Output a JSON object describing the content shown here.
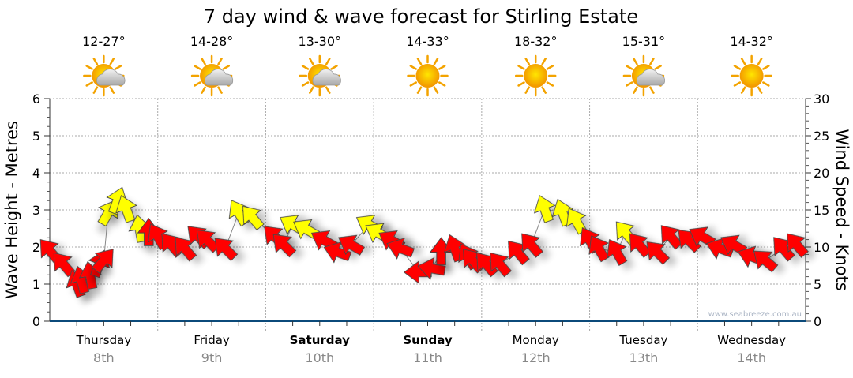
{
  "chart_data": {
    "type": "scatter",
    "title": "7 day wind & wave forecast for Stirling Estate",
    "ylabel_left": "Wave Height - Metres",
    "ylabel_right": "Wind Speed - Knots",
    "ylim_left": [
      0,
      6
    ],
    "ylim_right": [
      0,
      30
    ],
    "yticks_left": [
      "0",
      "1",
      "2",
      "3",
      "4",
      "5",
      "6"
    ],
    "yticks_right": [
      "0",
      "5",
      "10",
      "15",
      "20",
      "25",
      "30"
    ],
    "x_unit": "hours from Thursday 00:00",
    "xlim": [
      0,
      168
    ],
    "grid": true,
    "watermark": "www.seabreeze.com.au",
    "colors": {
      "calm": "#ff0000",
      "fresh": "#ffff00",
      "axis": "#0b4a7a",
      "date": "#888888"
    },
    "days": [
      {
        "name": "Thursday",
        "date": "8th",
        "temp": "12-27°",
        "icon": "partly-cloudy-icon",
        "bold": false
      },
      {
        "name": "Friday",
        "date": "9th",
        "temp": "14-28°",
        "icon": "partly-cloudy-icon",
        "bold": false
      },
      {
        "name": "Saturday",
        "date": "10th",
        "temp": "13-30°",
        "icon": "partly-cloudy-icon",
        "bold": true
      },
      {
        "name": "Sunday",
        "date": "11th",
        "temp": "14-33°",
        "icon": "sunny-icon",
        "bold": true
      },
      {
        "name": "Monday",
        "date": "12th",
        "temp": "18-32°",
        "icon": "sunny-icon",
        "bold": false
      },
      {
        "name": "Tuesday",
        "date": "13th",
        "temp": "15-31°",
        "icon": "partly-cloudy-icon",
        "bold": false
      },
      {
        "name": "Wednesday",
        "date": "14th",
        "temp": "14-32°",
        "icon": "sunny-icon",
        "bold": false
      }
    ],
    "wind": [
      {
        "h": 0,
        "kn": 9.5,
        "dir": 320,
        "c": "calm"
      },
      {
        "h": 3,
        "kn": 7.7,
        "dir": 320,
        "c": "calm"
      },
      {
        "h": 6,
        "kn": 5.0,
        "dir": 340,
        "c": "calm"
      },
      {
        "h": 7,
        "kn": 5.5,
        "dir": 345,
        "c": "calm"
      },
      {
        "h": 9,
        "kn": 6.1,
        "dir": 350,
        "c": "calm"
      },
      {
        "h": 11,
        "kn": 7.7,
        "dir": 20,
        "c": "calm"
      },
      {
        "h": 12,
        "kn": 8.2,
        "dir": 40,
        "c": "calm"
      },
      {
        "h": 13,
        "kn": 14.6,
        "dir": 30,
        "c": "fresh"
      },
      {
        "h": 15,
        "kn": 16.2,
        "dir": 20,
        "c": "fresh"
      },
      {
        "h": 17,
        "kn": 15.1,
        "dir": 340,
        "c": "fresh"
      },
      {
        "h": 20,
        "kn": 12.4,
        "dir": 350,
        "c": "fresh"
      },
      {
        "h": 22,
        "kn": 11.9,
        "dir": 0,
        "c": "calm"
      },
      {
        "h": 24,
        "kn": 11.4,
        "dir": 330,
        "c": "calm"
      },
      {
        "h": 27,
        "kn": 10.3,
        "dir": 320,
        "c": "calm"
      },
      {
        "h": 30,
        "kn": 9.8,
        "dir": 320,
        "c": "calm"
      },
      {
        "h": 33,
        "kn": 11.4,
        "dir": 315,
        "c": "calm"
      },
      {
        "h": 35,
        "kn": 10.9,
        "dir": 315,
        "c": "calm"
      },
      {
        "h": 39,
        "kn": 9.8,
        "dir": 315,
        "c": "calm"
      },
      {
        "h": 42,
        "kn": 14.6,
        "dir": 330,
        "c": "fresh"
      },
      {
        "h": 45,
        "kn": 14.0,
        "dir": 320,
        "c": "fresh"
      },
      {
        "h": 50,
        "kn": 11.4,
        "dir": 315,
        "c": "calm"
      },
      {
        "h": 52,
        "kn": 10.3,
        "dir": 315,
        "c": "calm"
      },
      {
        "h": 54,
        "kn": 13.0,
        "dir": 300,
        "c": "fresh"
      },
      {
        "h": 57,
        "kn": 12.4,
        "dir": 300,
        "c": "fresh"
      },
      {
        "h": 61,
        "kn": 10.9,
        "dir": 300,
        "c": "calm"
      },
      {
        "h": 64,
        "kn": 9.3,
        "dir": 290,
        "c": "calm"
      },
      {
        "h": 67,
        "kn": 10.3,
        "dir": 300,
        "c": "calm"
      },
      {
        "h": 71,
        "kn": 13.0,
        "dir": 300,
        "c": "fresh"
      },
      {
        "h": 73,
        "kn": 11.9,
        "dir": 300,
        "c": "fresh"
      },
      {
        "h": 76,
        "kn": 10.9,
        "dir": 300,
        "c": "calm"
      },
      {
        "h": 78,
        "kn": 9.8,
        "dir": 290,
        "c": "calm"
      },
      {
        "h": 82,
        "kn": 6.6,
        "dir": 270,
        "c": "calm"
      },
      {
        "h": 85,
        "kn": 7.1,
        "dir": 280,
        "c": "calm"
      },
      {
        "h": 87,
        "kn": 9.3,
        "dir": 0,
        "c": "calm"
      },
      {
        "h": 90,
        "kn": 9.8,
        "dir": 340,
        "c": "calm"
      },
      {
        "h": 93,
        "kn": 8.7,
        "dir": 330,
        "c": "calm"
      },
      {
        "h": 94,
        "kn": 8.2,
        "dir": 320,
        "c": "calm"
      },
      {
        "h": 97,
        "kn": 7.7,
        "dir": 320,
        "c": "calm"
      },
      {
        "h": 100,
        "kn": 7.7,
        "dir": 320,
        "c": "calm"
      },
      {
        "h": 104,
        "kn": 9.3,
        "dir": 320,
        "c": "calm"
      },
      {
        "h": 107,
        "kn": 10.3,
        "dir": 320,
        "c": "calm"
      },
      {
        "h": 110,
        "kn": 15.1,
        "dir": 340,
        "c": "fresh"
      },
      {
        "h": 114,
        "kn": 14.6,
        "dir": 340,
        "c": "fresh"
      },
      {
        "h": 117,
        "kn": 13.5,
        "dir": 330,
        "c": "fresh"
      },
      {
        "h": 120,
        "kn": 10.9,
        "dir": 330,
        "c": "calm"
      },
      {
        "h": 122,
        "kn": 9.8,
        "dir": 330,
        "c": "calm"
      },
      {
        "h": 126,
        "kn": 9.3,
        "dir": 330,
        "c": "calm"
      },
      {
        "h": 128,
        "kn": 11.9,
        "dir": 320,
        "c": "fresh"
      },
      {
        "h": 131,
        "kn": 10.3,
        "dir": 320,
        "c": "calm"
      },
      {
        "h": 135,
        "kn": 9.3,
        "dir": 315,
        "c": "calm"
      },
      {
        "h": 138,
        "kn": 11.4,
        "dir": 320,
        "c": "calm"
      },
      {
        "h": 142,
        "kn": 10.9,
        "dir": 315,
        "c": "calm"
      },
      {
        "h": 145,
        "kn": 11.4,
        "dir": 300,
        "c": "calm"
      },
      {
        "h": 149,
        "kn": 9.8,
        "dir": 290,
        "c": "calm"
      },
      {
        "h": 152,
        "kn": 10.3,
        "dir": 300,
        "c": "calm"
      },
      {
        "h": 156,
        "kn": 8.7,
        "dir": 290,
        "c": "calm"
      },
      {
        "h": 159,
        "kn": 8.2,
        "dir": 310,
        "c": "calm"
      },
      {
        "h": 163,
        "kn": 9.8,
        "dir": 320,
        "c": "calm"
      },
      {
        "h": 166,
        "kn": 10.3,
        "dir": 320,
        "c": "calm"
      }
    ]
  }
}
